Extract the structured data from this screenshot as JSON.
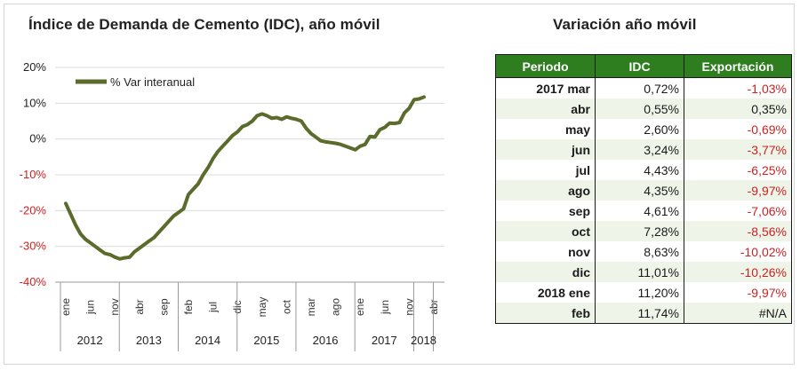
{
  "chart_title": "Índice de Demanda de Cemento (IDC), año móvil",
  "table_title": "Variación año móvil",
  "chart_data": {
    "type": "line",
    "series": [
      {
        "name": "% Var interanual",
        "color": "#5a6b2c",
        "x": [
          "2012-01",
          "2012-02",
          "2012-03",
          "2012-04",
          "2012-05",
          "2012-06",
          "2012-07",
          "2012-08",
          "2012-09",
          "2012-10",
          "2012-11",
          "2012-12",
          "2013-01",
          "2013-02",
          "2013-03",
          "2013-04",
          "2013-05",
          "2013-06",
          "2013-07",
          "2013-08",
          "2013-09",
          "2013-10",
          "2013-11",
          "2013-12",
          "2014-01",
          "2014-02",
          "2014-03",
          "2014-04",
          "2014-05",
          "2014-06",
          "2014-07",
          "2014-08",
          "2014-09",
          "2014-10",
          "2014-11",
          "2014-12",
          "2015-01",
          "2015-02",
          "2015-03",
          "2015-04",
          "2015-05",
          "2015-06",
          "2015-07",
          "2015-08",
          "2015-09",
          "2015-10",
          "2015-11",
          "2015-12",
          "2016-01",
          "2016-02",
          "2016-03",
          "2016-04",
          "2016-05",
          "2016-06",
          "2016-07",
          "2016-08",
          "2016-09",
          "2016-10",
          "2016-11",
          "2016-12",
          "2017-01",
          "2017-02",
          "2017-03",
          "2017-04",
          "2017-05",
          "2017-06",
          "2017-07",
          "2017-08",
          "2017-09",
          "2017-10",
          "2017-11",
          "2017-12",
          "2018-01",
          "2018-02"
        ],
        "values": [
          -18,
          -21,
          -24,
          -26.5,
          -28,
          -29,
          -30,
          -31,
          -32,
          -32.3,
          -33,
          -33.5,
          -33.2,
          -33,
          -31.5,
          -30.5,
          -29.5,
          -28.5,
          -27.5,
          -26,
          -24.5,
          -23,
          -21.5,
          -20.5,
          -19.5,
          -15.5,
          -14,
          -12.5,
          -10,
          -8,
          -5.5,
          -3.5,
          -2,
          -0.5,
          1,
          2,
          3.5,
          4,
          5,
          6.5,
          7,
          6.5,
          5.8,
          6,
          5.5,
          6.2,
          5.8,
          5.5,
          5,
          3,
          1.5,
          0.5,
          -0.5,
          -0.8,
          -1,
          -1.2,
          -1.5,
          -2,
          -2.5,
          -3,
          -2,
          -1.5,
          0.72,
          0.55,
          2.6,
          3.24,
          4.43,
          4.35,
          4.61,
          7.28,
          8.63,
          11.01,
          11.2,
          11.74
        ]
      }
    ],
    "ylim": [
      -40,
      20
    ],
    "yticks": [
      "-40%",
      "-30%",
      "-20%",
      "-10%",
      "0%",
      "10%",
      "20%"
    ],
    "month_labels": [
      {
        "x": "2012-01",
        "label": "ene"
      },
      {
        "x": "2012-06",
        "label": "jun"
      },
      {
        "x": "2012-11",
        "label": "nov"
      },
      {
        "x": "2013-04",
        "label": "abr"
      },
      {
        "x": "2013-09",
        "label": "sep"
      },
      {
        "x": "2014-02",
        "label": "feb"
      },
      {
        "x": "2014-07",
        "label": "jul"
      },
      {
        "x": "2014-12",
        "label": "dic"
      },
      {
        "x": "2015-05",
        "label": "may"
      },
      {
        "x": "2015-10",
        "label": "oct"
      },
      {
        "x": "2016-03",
        "label": "mar"
      },
      {
        "x": "2016-08",
        "label": "ago"
      },
      {
        "x": "2017-01",
        "label": "ene"
      },
      {
        "x": "2017-06",
        "label": "jun"
      },
      {
        "x": "2017-11",
        "label": "nov"
      },
      {
        "x": "2018-04",
        "label": "abr"
      }
    ],
    "years": [
      "2012",
      "2013",
      "2014",
      "2015",
      "2016",
      "2017",
      "2018"
    ],
    "grid": true,
    "legend_position": "top-left"
  },
  "table": {
    "headers": [
      "Periodo",
      "IDC",
      "Exportación"
    ],
    "rows": [
      {
        "period": "2017 mar",
        "idc": "0,72%",
        "export": "-1,03%"
      },
      {
        "period": "abr",
        "idc": "0,55%",
        "export": "0,35%"
      },
      {
        "period": "may",
        "idc": "2,60%",
        "export": "-0,69%"
      },
      {
        "period": "jun",
        "idc": "3,24%",
        "export": "-3,77%"
      },
      {
        "period": "jul",
        "idc": "4,43%",
        "export": "-6,25%"
      },
      {
        "period": "ago",
        "idc": "4,35%",
        "export": "-9,97%"
      },
      {
        "period": "sep",
        "idc": "4,61%",
        "export": "-7,06%"
      },
      {
        "period": "oct",
        "idc": "7,28%",
        "export": "-8,56%"
      },
      {
        "period": "nov",
        "idc": "8,63%",
        "export": "-10,02%"
      },
      {
        "period": "dic",
        "idc": "11,01%",
        "export": "-10,26%"
      },
      {
        "period": "2018 ene",
        "idc": "11,20%",
        "export": "-9,97%"
      },
      {
        "period": "feb",
        "idc": "11,74%",
        "export": "#N/A"
      }
    ],
    "header_color": "#2e7d1f",
    "negative_color": "#cc2222"
  }
}
